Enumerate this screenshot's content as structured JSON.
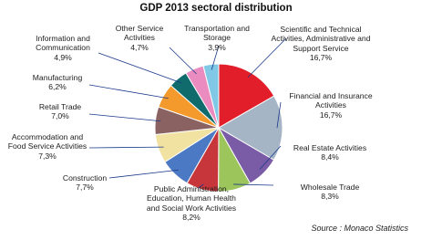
{
  "chart_data": {
    "type": "pie",
    "title": "GDP 2013 sectoral distribution",
    "source": "Source : Monaco Statistics",
    "categories": [
      "Scientific and Technical Activities, Administrative and Support Service",
      "Financial and Insurance Activities",
      "Real Estate Activities",
      "Wholesale Trade",
      "Public Administration, Education, Human Health and Social Work Activities",
      "Construction",
      "Accommodation and Food Service Activities",
      "Retail Trade",
      "Manufacturing",
      "Information and Communication",
      "Other Service Activities",
      "Transportation and Storage"
    ],
    "values": [
      16.7,
      16.7,
      8.4,
      8.3,
      8.2,
      7.7,
      7.3,
      7.0,
      6.2,
      4.9,
      4.7,
      3.9
    ],
    "value_labels": [
      "16,7%",
      "16,7%",
      "8,4%",
      "8,3%",
      "8,2%",
      "7,7%",
      "7,3%",
      "7,0%",
      "6,2%",
      "4,9%",
      "4,7%",
      "3,9%"
    ],
    "colors": [
      "#e31e2b",
      "#a5b5c6",
      "#7a5ba6",
      "#9cc65c",
      "#c7363a",
      "#4b79c3",
      "#f2e2a2",
      "#8b6262",
      "#f49a2c",
      "#0f6b6c",
      "#ea8cbf",
      "#80c8e6"
    ]
  }
}
